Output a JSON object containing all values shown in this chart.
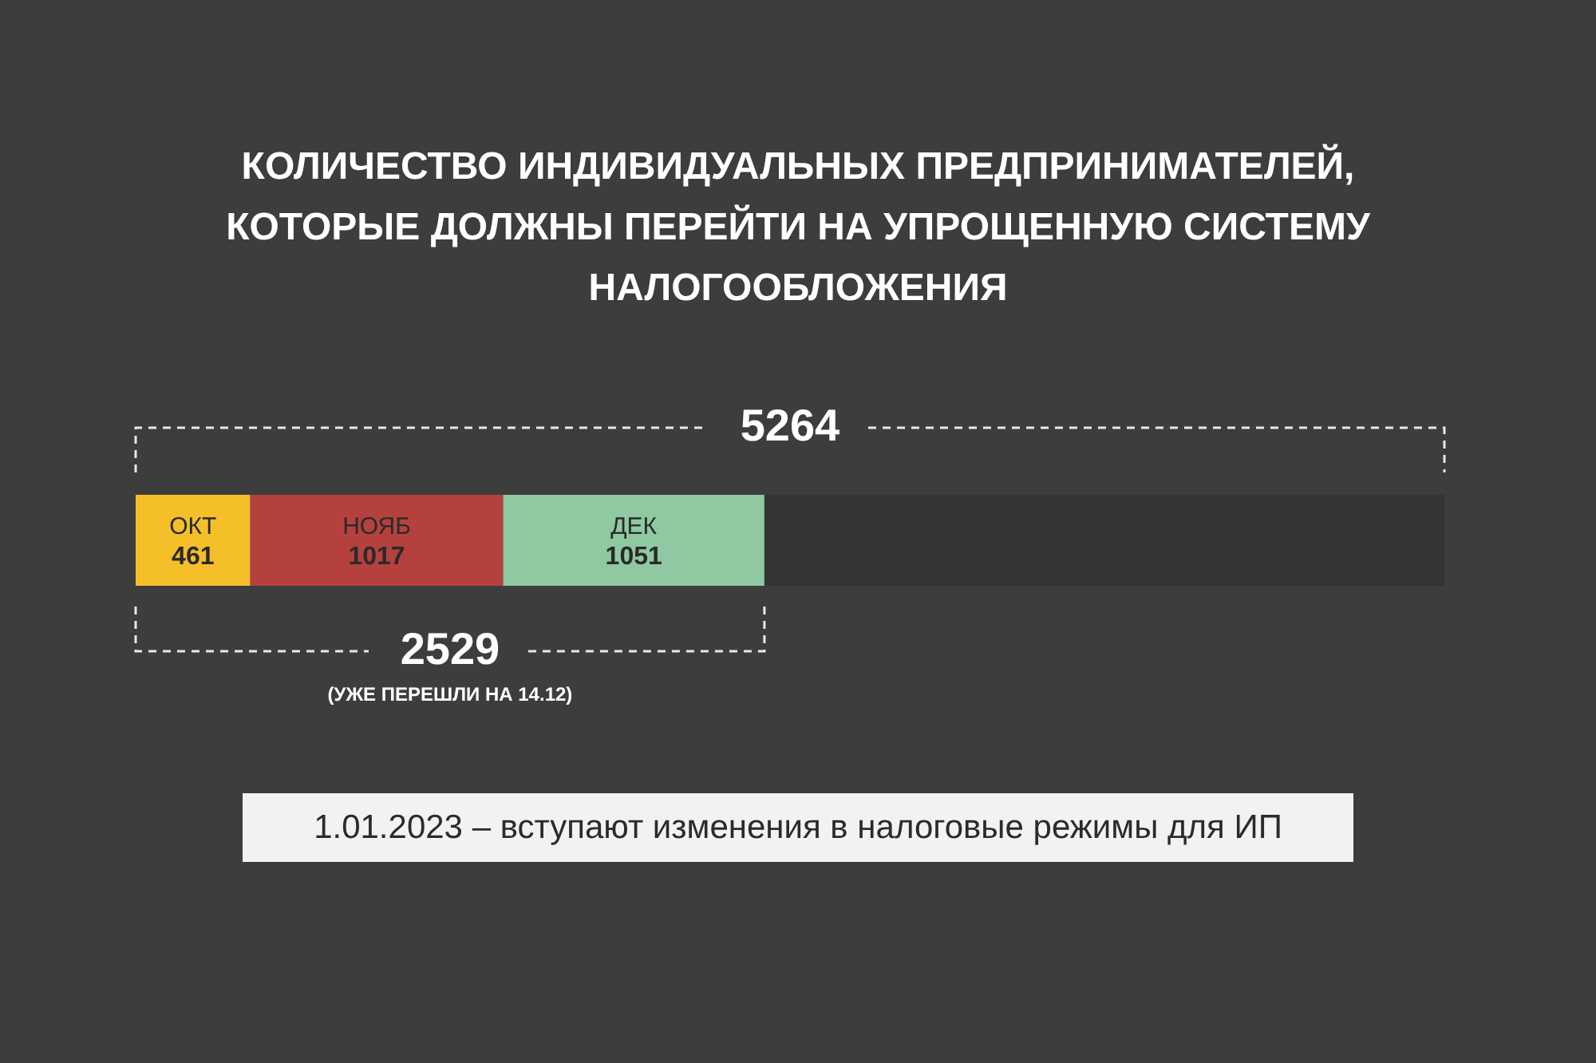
{
  "chart_data": {
    "type": "bar",
    "orientation": "horizontal",
    "stacked": true,
    "title": "КОЛИЧЕСТВО ИНДИВИДУАЛЬНЫХ ПРЕДПРИНИМАТЕЛЕЙ, КОТОРЫЕ ДОЛЖНЫ ПЕРЕЙТИ НА УПРОЩЕННУЮ СИСТЕМУ НАЛОГООБЛОЖЕНИЯ",
    "categories": [
      null
    ],
    "xlim": [
      0,
      5264
    ],
    "tick_labels": false,
    "series": [
      {
        "name": "ОКТ",
        "color": "#f5bf2a",
        "values": [
          461
        ],
        "value_labels": [
          "461"
        ]
      },
      {
        "name": "НОЯБ",
        "color": "#b5413f",
        "values": [
          1017
        ],
        "value_labels": [
          "1017"
        ]
      },
      {
        "name": "ДЕК",
        "color": "#8fc9a1",
        "values": [
          1051
        ],
        "value_labels": [
          "1051"
        ]
      },
      {
        "color": "#343434",
        "values": [
          2735
        ],
        "value_labels": [
          null
        ]
      }
    ],
    "annotations": [
      "5264",
      "2529",
      "(УЖЕ ПЕРЕШЛИ НА 14.12)",
      "1.01.2023 – вступают изменения в налоговые режимы для ИП"
    ]
  }
}
